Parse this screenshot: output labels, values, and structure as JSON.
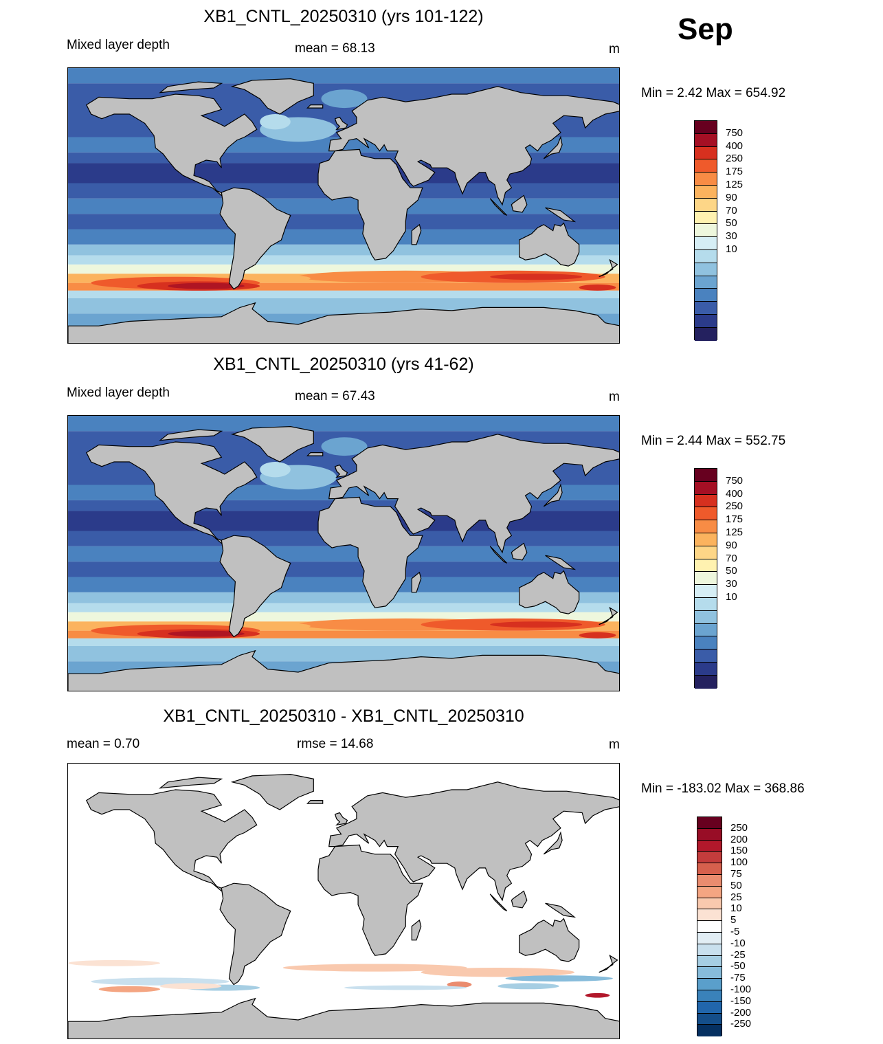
{
  "month_label": "Sep",
  "colors": {
    "land": "#c0c0c0",
    "coast": "#000000"
  },
  "panels": [
    {
      "title": "XB1_CNTL_20250310 (yrs 101-122)",
      "left_label": "Mixed layer depth",
      "center_label": "mean =  68.13",
      "right_label": "m",
      "minmax": "Min =    2.42 Max = 654.92",
      "colorbar": "abs",
      "map_fill": "abs"
    },
    {
      "title": "XB1_CNTL_20250310 (yrs 41-62)",
      "left_label": "Mixed layer depth",
      "center_label": "mean =  67.43",
      "right_label": "m",
      "minmax": "Min =    2.44 Max = 552.75",
      "colorbar": "abs",
      "map_fill": "abs"
    },
    {
      "title": "XB1_CNTL_20250310 - XB1_CNTL_20250310",
      "left_label": "mean =   0.70",
      "center_label": "rmse =  14.68",
      "right_label": "m",
      "minmax": "Min = -183.02 Max = 368.86",
      "colorbar": "diff",
      "map_fill": "diff"
    }
  ],
  "colorbars": {
    "abs": {
      "colors": [
        "#67001f",
        "#a50f24",
        "#d7301f",
        "#ef5a2b",
        "#f88c45",
        "#fbb35e",
        "#fdd687",
        "#fff2b0",
        "#eef7dd",
        "#d6eef5",
        "#b5dcec",
        "#90c2df",
        "#6ba4d0",
        "#4a82bf",
        "#3a5ca8",
        "#2b3b8a",
        "#24215f"
      ],
      "labels": [
        "750",
        "400",
        "250",
        "175",
        "125",
        "90",
        "70",
        "50",
        "30",
        "10"
      ]
    },
    "diff": {
      "colors": [
        "#67001f",
        "#980d26",
        "#b2182b",
        "#c43c3c",
        "#d6604d",
        "#ea8c6f",
        "#f4a582",
        "#f9c9ae",
        "#fbe2d3",
        "#ffffff",
        "#e2eef5",
        "#c9e0ee",
        "#a6cee3",
        "#87bcdb",
        "#5a9fcb",
        "#3a82ba",
        "#2166ac",
        "#144e8a",
        "#053061"
      ],
      "labels": [
        "250",
        "200",
        "150",
        "100",
        "75",
        "50",
        "25",
        "10",
        "5",
        "-5",
        "-10",
        "-25",
        "-50",
        "-75",
        "-100",
        "-150",
        "-200",
        "-250"
      ]
    }
  }
}
